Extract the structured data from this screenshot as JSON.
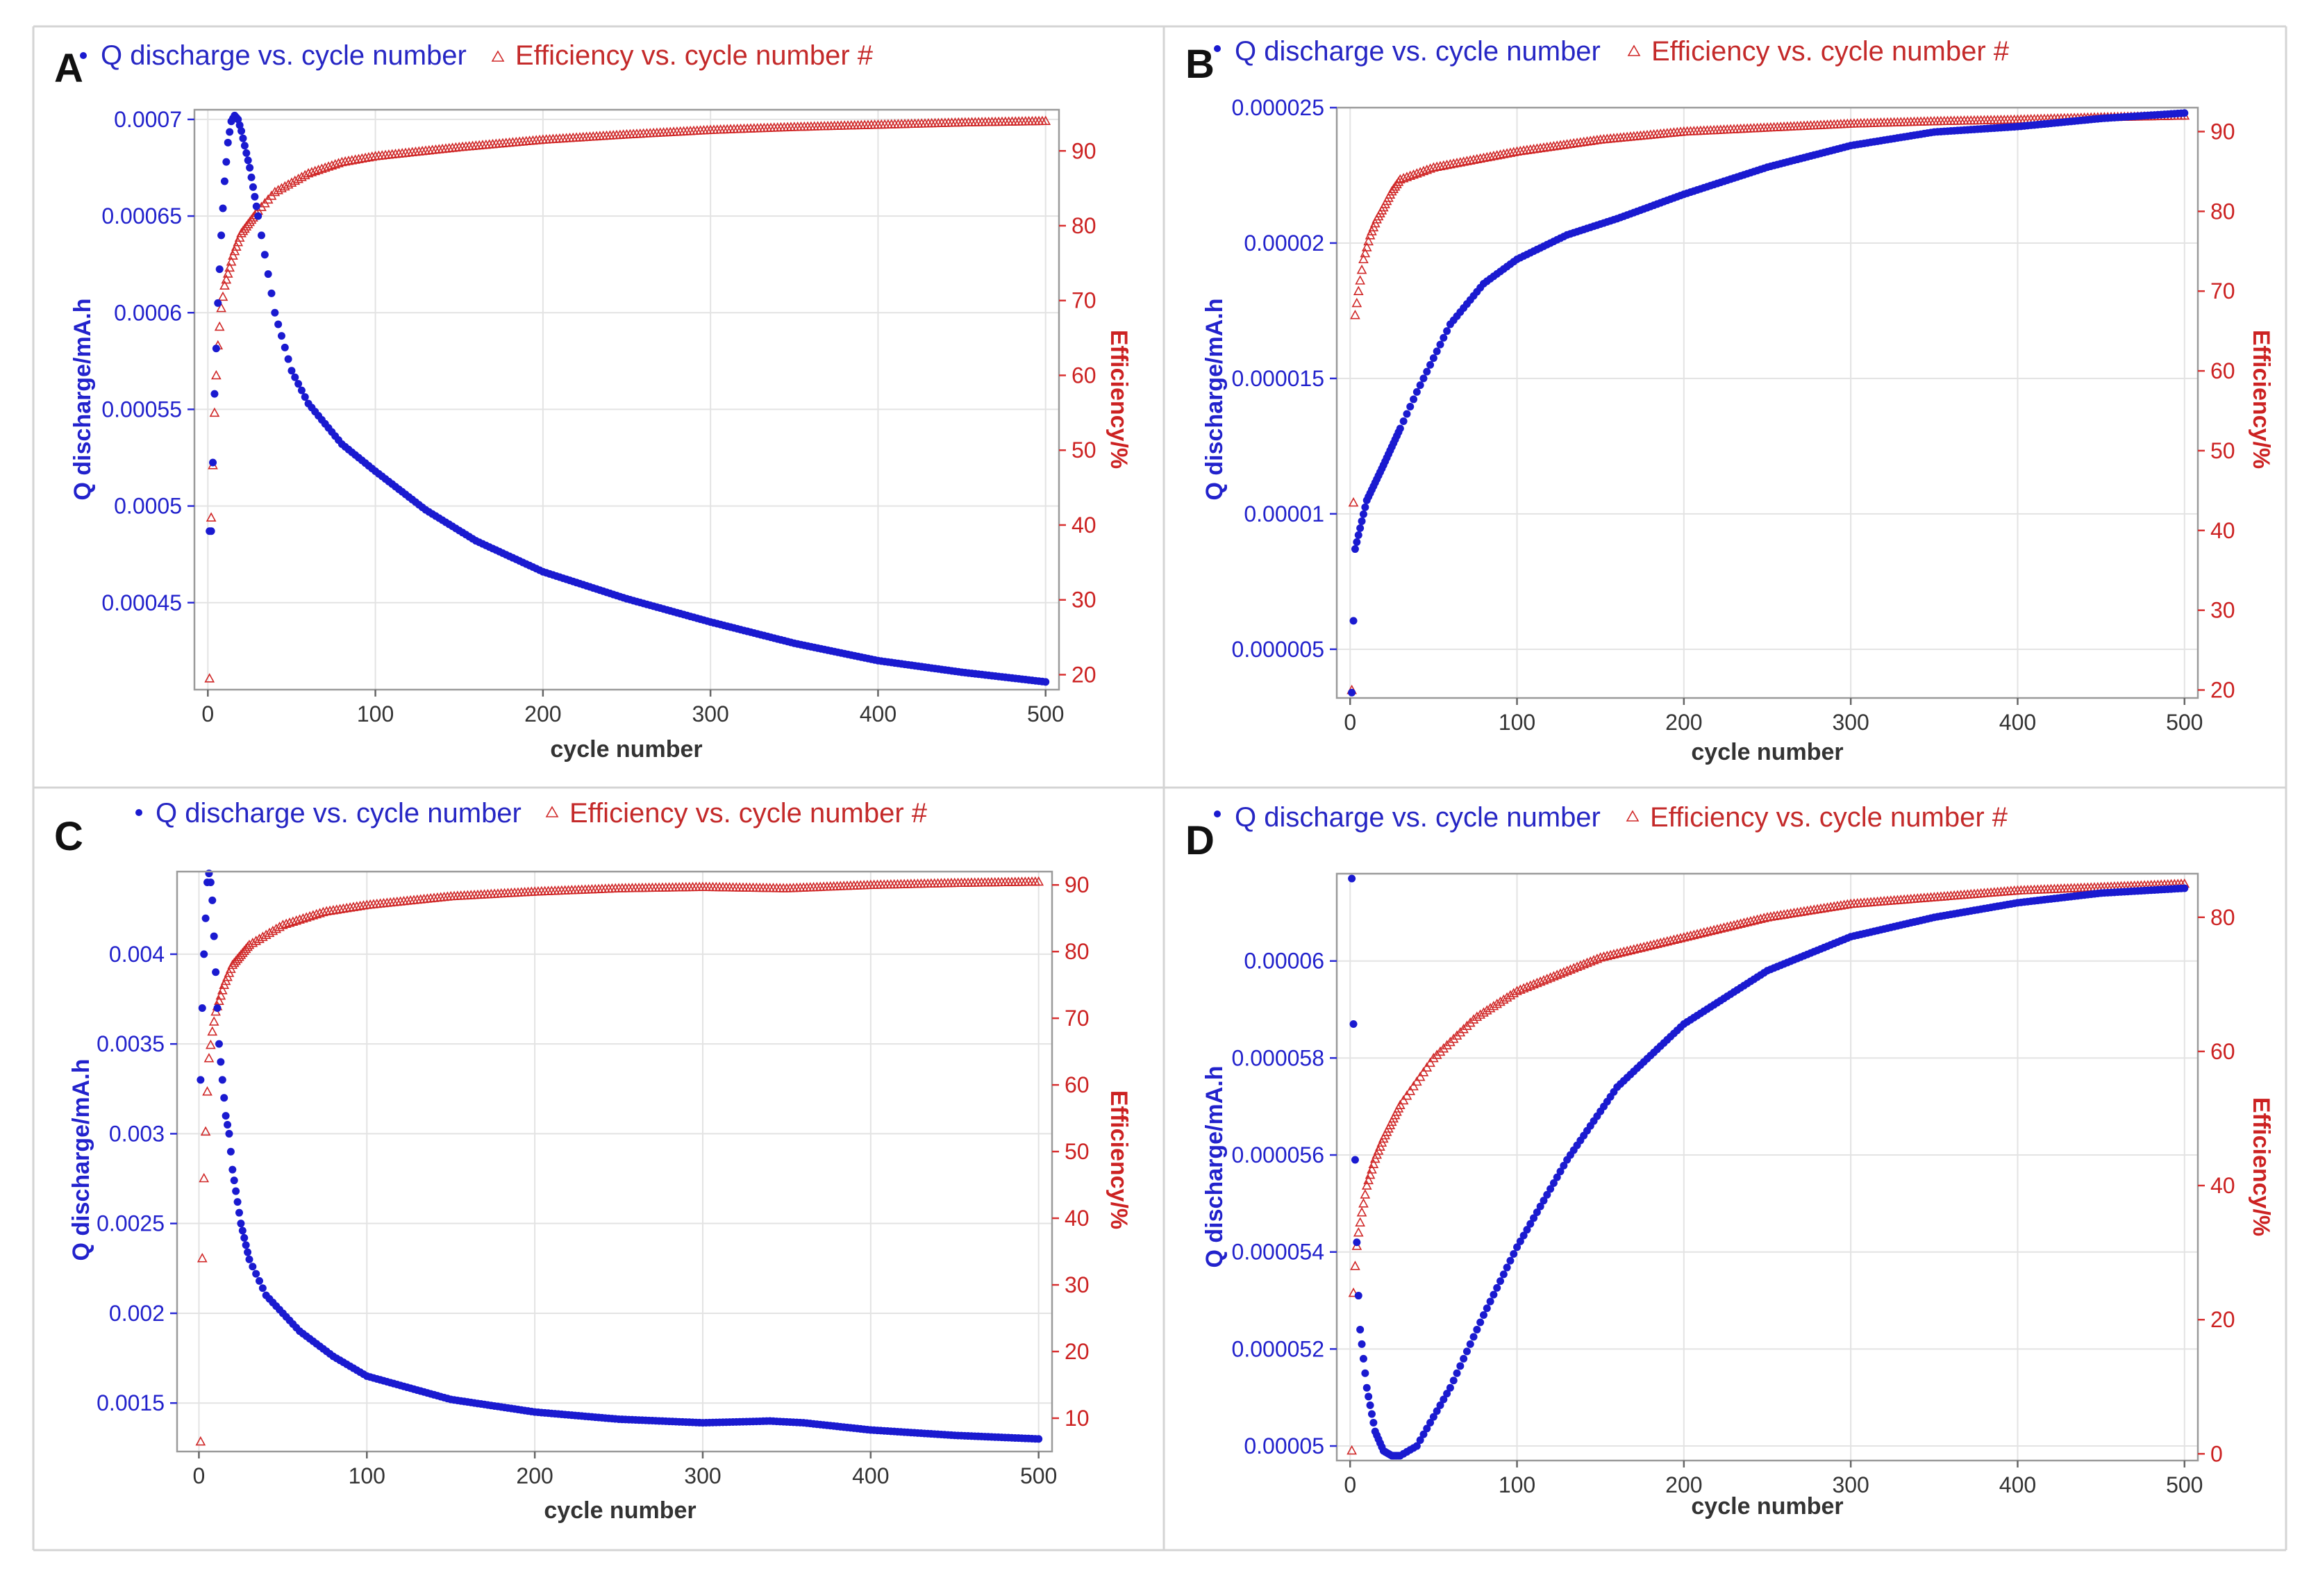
{
  "figure": {
    "panels": [
      {
        "letter": "A",
        "legend": {
          "q": "Q discharge vs. cycle number",
          "e": "Efficiency vs. cycle number #"
        },
        "xlabel": "cycle number",
        "ylabel_left": "Q discharge/mA.h",
        "ylabel_right": "Efficiency/%"
      },
      {
        "letter": "B",
        "legend": {
          "q": "Q discharge vs. cycle number",
          "e": "Efficiency vs. cycle number #"
        },
        "xlabel": "cycle number",
        "ylabel_left": "Q discharge/mA.h",
        "ylabel_right": "Efficiency/%"
      },
      {
        "letter": "C",
        "legend": {
          "q": "Q discharge vs. cycle number",
          "e": "Efficiency vs. cycle number #"
        },
        "xlabel": "cycle number",
        "ylabel_left": "Q discharge/mA.h",
        "ylabel_right": "Efficiency/%"
      },
      {
        "letter": "D",
        "legend": {
          "q": "Q discharge vs. cycle number",
          "e": "Efficiency vs. cycle number #"
        },
        "xlabel": "cycle number",
        "ylabel_left": "Q discharge/mA.h",
        "ylabel_right": "Efficiency/%"
      }
    ]
  },
  "chart_data": [
    {
      "panel": "A",
      "type": "scatter",
      "title": "",
      "xlabel": "cycle number",
      "ylabel": "Q discharge/mA.h",
      "y2label": "Efficiency/%",
      "xlim": [
        -8,
        508
      ],
      "ylim": [
        0.000405,
        0.000705
      ],
      "y2lim": [
        18,
        95.5
      ],
      "xticks": [
        "0",
        "100",
        "200",
        "300",
        "400",
        "500"
      ],
      "yticks": [
        "0.00045",
        "0.0005",
        "0.00055",
        "0.0006",
        "0.00065",
        "0.0007"
      ],
      "y2ticks": [
        "20",
        "30",
        "40",
        "50",
        "60",
        "70",
        "80",
        "90"
      ],
      "grid": true,
      "legend_position": "top",
      "series": [
        {
          "name": "Q discharge vs. cycle number",
          "axis": "left",
          "marker": "dot",
          "color": "#1a1ad0",
          "points": [
            [
              2,
              0.000487
            ],
            [
              4,
              0.000558
            ],
            [
              6,
              0.000605
            ],
            [
              8,
              0.00064
            ],
            [
              10,
              0.000668
            ],
            [
              12,
              0.000688
            ],
            [
              14,
              0.000699
            ],
            [
              16,
              0.000702
            ],
            [
              18,
              0.0007
            ],
            [
              20,
              0.000694
            ],
            [
              25,
              0.000675
            ],
            [
              30,
              0.00065
            ],
            [
              40,
              0.0006
            ],
            [
              50,
              0.00057
            ],
            [
              60,
              0.000553
            ],
            [
              80,
              0.000532
            ],
            [
              100,
              0.000518
            ],
            [
              130,
              0.000498
            ],
            [
              160,
              0.000482
            ],
            [
              200,
              0.000466
            ],
            [
              250,
              0.000452
            ],
            [
              300,
              0.00044
            ],
            [
              350,
              0.000429
            ],
            [
              400,
              0.00042
            ],
            [
              450,
              0.000414
            ],
            [
              500,
              0.000409
            ]
          ]
        },
        {
          "name": "Efficiency vs. cycle number #",
          "axis": "right",
          "marker": "triangle",
          "color": "#d02828",
          "points": [
            [
              1,
              19.5
            ],
            [
              2,
              41
            ],
            [
              3,
              48
            ],
            [
              4,
              55
            ],
            [
              5,
              60
            ],
            [
              6,
              64
            ],
            [
              8,
              69
            ],
            [
              10,
              72
            ],
            [
              15,
              76
            ],
            [
              20,
              79
            ],
            [
              30,
              82
            ],
            [
              40,
              84.5
            ],
            [
              60,
              87
            ],
            [
              80,
              88.5
            ],
            [
              100,
              89.3
            ],
            [
              150,
              90.5
            ],
            [
              200,
              91.5
            ],
            [
              250,
              92.2
            ],
            [
              300,
              92.8
            ],
            [
              350,
              93.2
            ],
            [
              400,
              93.5
            ],
            [
              450,
              93.8
            ],
            [
              500,
              94
            ]
          ]
        }
      ]
    },
    {
      "panel": "B",
      "type": "scatter",
      "title": "",
      "xlabel": "cycle number",
      "ylabel": "Q discharge/mA.h",
      "y2label": "Efficiency/%",
      "xlim": [
        -8,
        508
      ],
      "ylim": [
        3.2e-06,
        2.5e-05
      ],
      "y2lim": [
        19,
        93
      ],
      "xticks": [
        "0",
        "100",
        "200",
        "300",
        "400",
        "500"
      ],
      "yticks": [
        "0.000005",
        "0.00001",
        "0.000015",
        "0.00002",
        "0.000025"
      ],
      "y2ticks": [
        "20",
        "30",
        "40",
        "50",
        "60",
        "70",
        "80",
        "90"
      ],
      "grid": true,
      "legend_position": "top",
      "series": [
        {
          "name": "Q discharge vs. cycle number",
          "axis": "left",
          "marker": "dot",
          "color": "#1a1ad0",
          "points": [
            [
              1,
              3.4e-06
            ],
            [
              3,
              8.7e-06
            ],
            [
              10,
              1.05e-05
            ],
            [
              20,
              1.18e-05
            ],
            [
              40,
              1.45e-05
            ],
            [
              60,
              1.7e-05
            ],
            [
              80,
              1.85e-05
            ],
            [
              100,
              1.94e-05
            ],
            [
              130,
              2.03e-05
            ],
            [
              160,
              2.09e-05
            ],
            [
              200,
              2.18e-05
            ],
            [
              250,
              2.28e-05
            ],
            [
              300,
              2.36e-05
            ],
            [
              350,
              2.41e-05
            ],
            [
              400,
              2.43e-05
            ],
            [
              450,
              2.46e-05
            ],
            [
              500,
              2.48e-05
            ]
          ]
        },
        {
          "name": "Efficiency vs. cycle number #",
          "axis": "right",
          "marker": "triangle",
          "color": "#d02828",
          "points": [
            [
              1,
              20
            ],
            [
              3,
              67
            ],
            [
              5,
              70
            ],
            [
              8,
              74
            ],
            [
              12,
              77
            ],
            [
              16,
              79
            ],
            [
              20,
              80.5
            ],
            [
              25,
              82.5
            ],
            [
              30,
              84
            ],
            [
              50,
              85.5
            ],
            [
              75,
              86.5
            ],
            [
              100,
              87.5
            ],
            [
              150,
              89
            ],
            [
              200,
              90
            ],
            [
              250,
              90.5
            ],
            [
              300,
              91
            ],
            [
              350,
              91.3
            ],
            [
              400,
              91.5
            ],
            [
              450,
              91.8
            ],
            [
              500,
              92
            ]
          ]
        }
      ]
    },
    {
      "panel": "C",
      "type": "scatter",
      "title": "",
      "xlabel": "cycle number",
      "ylabel": "Q discharge/mA.h",
      "y2label": "Efficiency/%",
      "xlim": [
        -13,
        508
      ],
      "ylim": [
        0.00123,
        0.00446
      ],
      "y2lim": [
        5,
        92
      ],
      "xticks": [
        "0",
        "100",
        "200",
        "300",
        "400",
        "500"
      ],
      "yticks": [
        "0.0015",
        "0.002",
        "0.0025",
        "0.003",
        "0.0035",
        "0.004"
      ],
      "y2ticks": [
        "10",
        "20",
        "30",
        "40",
        "50",
        "60",
        "70",
        "80",
        "90"
      ],
      "grid": true,
      "legend_position": "top",
      "series": [
        {
          "name": "Q discharge vs. cycle number",
          "axis": "left",
          "marker": "dot",
          "color": "#1a1ad0",
          "points": [
            [
              1,
              0.0033
            ],
            [
              2,
              0.0037
            ],
            [
              3,
              0.004
            ],
            [
              4,
              0.0042
            ],
            [
              5,
              0.0044
            ],
            [
              6,
              0.00445
            ],
            [
              7,
              0.0044
            ],
            [
              8,
              0.0043
            ],
            [
              10,
              0.0039
            ],
            [
              12,
              0.0035
            ],
            [
              14,
              0.0033
            ],
            [
              16,
              0.0031
            ],
            [
              18,
              0.003
            ],
            [
              20,
              0.0028
            ],
            [
              25,
              0.0025
            ],
            [
              30,
              0.0023
            ],
            [
              40,
              0.0021
            ],
            [
              60,
              0.0019
            ],
            [
              80,
              0.00176
            ],
            [
              100,
              0.00165
            ],
            [
              150,
              0.00152
            ],
            [
              200,
              0.00145
            ],
            [
              250,
              0.00141
            ],
            [
              300,
              0.00139
            ],
            [
              340,
              0.0014
            ],
            [
              360,
              0.00139
            ],
            [
              400,
              0.00135
            ],
            [
              450,
              0.00132
            ],
            [
              500,
              0.0013
            ]
          ]
        },
        {
          "name": "Efficiency vs. cycle number #",
          "axis": "right",
          "marker": "triangle",
          "color": "#d02828",
          "points": [
            [
              1,
              6.5
            ],
            [
              2,
              34
            ],
            [
              3,
              46
            ],
            [
              4,
              53
            ],
            [
              5,
              59
            ],
            [
              6,
              64
            ],
            [
              8,
              68
            ],
            [
              10,
              71
            ],
            [
              15,
              75
            ],
            [
              20,
              78
            ],
            [
              30,
              81
            ],
            [
              50,
              84
            ],
            [
              75,
              86
            ],
            [
              100,
              87
            ],
            [
              150,
              88.3
            ],
            [
              200,
              89
            ],
            [
              250,
              89.5
            ],
            [
              300,
              89.7
            ],
            [
              350,
              89.5
            ],
            [
              400,
              90
            ],
            [
              450,
              90.3
            ],
            [
              500,
              90.5
            ]
          ]
        }
      ]
    },
    {
      "panel": "D",
      "type": "scatter",
      "title": "",
      "xlabel": "cycle number",
      "ylabel": "Q discharge/mA.h",
      "y2label": "Efficiency/%",
      "xlim": [
        -8,
        508
      ],
      "ylim": [
        4.97e-05,
        6.18e-05
      ],
      "y2lim": [
        -1,
        86.5
      ],
      "xticks": [
        "0",
        "100",
        "200",
        "300",
        "400",
        "500"
      ],
      "yticks": [
        "0.00005",
        "0.000052",
        "0.000054",
        "0.000056",
        "0.000058",
        "0.00006"
      ],
      "y2ticks": [
        "0",
        "20",
        "40",
        "60",
        "80"
      ],
      "grid": true,
      "legend_position": "top",
      "series": [
        {
          "name": "Q discharge vs. cycle number",
          "axis": "left",
          "marker": "dot",
          "color": "#1a1ad0",
          "points": [
            [
              1,
              6.17e-05
            ],
            [
              2,
              5.87e-05
            ],
            [
              3,
              5.59e-05
            ],
            [
              4,
              5.42e-05
            ],
            [
              5,
              5.31e-05
            ],
            [
              6,
              5.24e-05
            ],
            [
              8,
              5.18e-05
            ],
            [
              10,
              5.12e-05
            ],
            [
              15,
              5.03e-05
            ],
            [
              20,
              4.99e-05
            ],
            [
              25,
              4.98e-05
            ],
            [
              30,
              4.98e-05
            ],
            [
              40,
              5e-05
            ],
            [
              60,
              5.12e-05
            ],
            [
              80,
              5.27e-05
            ],
            [
              100,
              5.41e-05
            ],
            [
              130,
              5.59e-05
            ],
            [
              160,
              5.74e-05
            ],
            [
              200,
              5.87e-05
            ],
            [
              250,
              5.98e-05
            ],
            [
              300,
              6.05e-05
            ],
            [
              350,
              6.09e-05
            ],
            [
              400,
              6.12e-05
            ],
            [
              450,
              6.14e-05
            ],
            [
              500,
              6.15e-05
            ]
          ]
        },
        {
          "name": "Efficiency vs. cycle number #",
          "axis": "right",
          "marker": "triangle",
          "color": "#d02828",
          "points": [
            [
              1,
              0.5
            ],
            [
              2,
              24
            ],
            [
              3,
              28
            ],
            [
              4,
              31
            ],
            [
              5,
              33
            ],
            [
              7,
              36
            ],
            [
              10,
              40
            ],
            [
              15,
              44
            ],
            [
              20,
              47
            ],
            [
              30,
              52
            ],
            [
              50,
              59
            ],
            [
              75,
              65
            ],
            [
              100,
              69
            ],
            [
              150,
              74
            ],
            [
              200,
              77
            ],
            [
              250,
              80
            ],
            [
              300,
              82
            ],
            [
              350,
              83
            ],
            [
              400,
              84
            ],
            [
              450,
              84.5
            ],
            [
              500,
              85
            ]
          ]
        }
      ]
    }
  ]
}
